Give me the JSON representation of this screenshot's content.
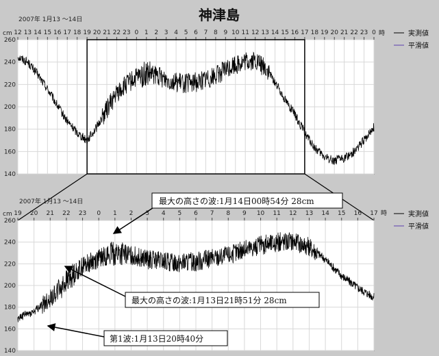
{
  "title": "神津島",
  "chart_data": [
    {
      "type": "line",
      "date_label": "2007年  1月13  〜14日",
      "hour_unit": "時",
      "y_unit": "cm",
      "x_ticks": [
        "12",
        "13",
        "14",
        "15",
        "16",
        "17",
        "18",
        "19",
        "20",
        "21",
        "22",
        "23",
        "0",
        "1",
        "2",
        "3",
        "4",
        "5",
        "6",
        "7",
        "8",
        "9",
        "10",
        "11",
        "12",
        "13",
        "14",
        "15",
        "16",
        "17",
        "18",
        "19",
        "20",
        "21",
        "22",
        "23",
        "0"
      ],
      "ylim": [
        140,
        260
      ],
      "y_ticks": [
        260,
        240,
        220,
        200,
        180,
        160,
        140
      ],
      "grid": true,
      "legend": "right",
      "series": [
        {
          "name": "実測値",
          "color": "#000000",
          "x": [
            12,
            13,
            14,
            15,
            16,
            17,
            18,
            19,
            20,
            21,
            22,
            23,
            24,
            25,
            26,
            27,
            28,
            29,
            30,
            31,
            32,
            33,
            34,
            35,
            36,
            37,
            38,
            39,
            40,
            41,
            42,
            43,
            44,
            45,
            46,
            47,
            48
          ],
          "y": [
            245,
            240,
            229,
            216,
            201,
            187,
            177,
            170,
            182,
            198,
            212,
            220,
            226,
            229,
            228,
            225,
            222,
            221,
            222,
            225,
            228,
            233,
            238,
            240,
            241,
            235,
            222,
            207,
            193,
            177,
            163,
            155,
            152,
            154,
            160,
            170,
            182
          ]
        },
        {
          "name": "平滑値",
          "color": "#5a3db0",
          "x": [],
          "y": []
        }
      ],
      "highlight": {
        "start_hour": 19,
        "end_hour": 41
      }
    },
    {
      "type": "line",
      "date_label": "2007年  1月13  〜14日",
      "hour_unit": "時",
      "y_unit": "cm",
      "x_ticks": [
        "19",
        "20",
        "21",
        "22",
        "23",
        "0",
        "1",
        "2",
        "3",
        "4",
        "5",
        "6",
        "7",
        "8",
        "9",
        "10",
        "11",
        "12",
        "13",
        "14",
        "15",
        "16",
        "17"
      ],
      "ylim": [
        140,
        260
      ],
      "y_ticks": [
        260,
        240,
        220,
        200,
        180,
        160,
        140
      ],
      "grid": true,
      "legend": "right",
      "series": [
        {
          "name": "実測値",
          "color": "#000000",
          "x": [
            19,
            20,
            21,
            22,
            23,
            24,
            25,
            26,
            27,
            28,
            29,
            30,
            31,
            32,
            33,
            34,
            35,
            36,
            37,
            38,
            39,
            40,
            41
          ],
          "y": [
            170,
            176,
            188,
            204,
            218,
            225,
            230,
            228,
            224,
            222,
            221,
            222,
            225,
            228,
            233,
            237,
            240,
            241,
            236,
            224,
            209,
            198,
            189
          ]
        },
        {
          "name": "平滑値",
          "color": "#5a3db0",
          "x": [],
          "y": []
        }
      ],
      "annotations": [
        "最大の高さの波:1月14日00時54分  28cm",
        "最大の高さの波:1月13日21時51分  28cm",
        "第1波:1月13日20時40分"
      ]
    }
  ]
}
